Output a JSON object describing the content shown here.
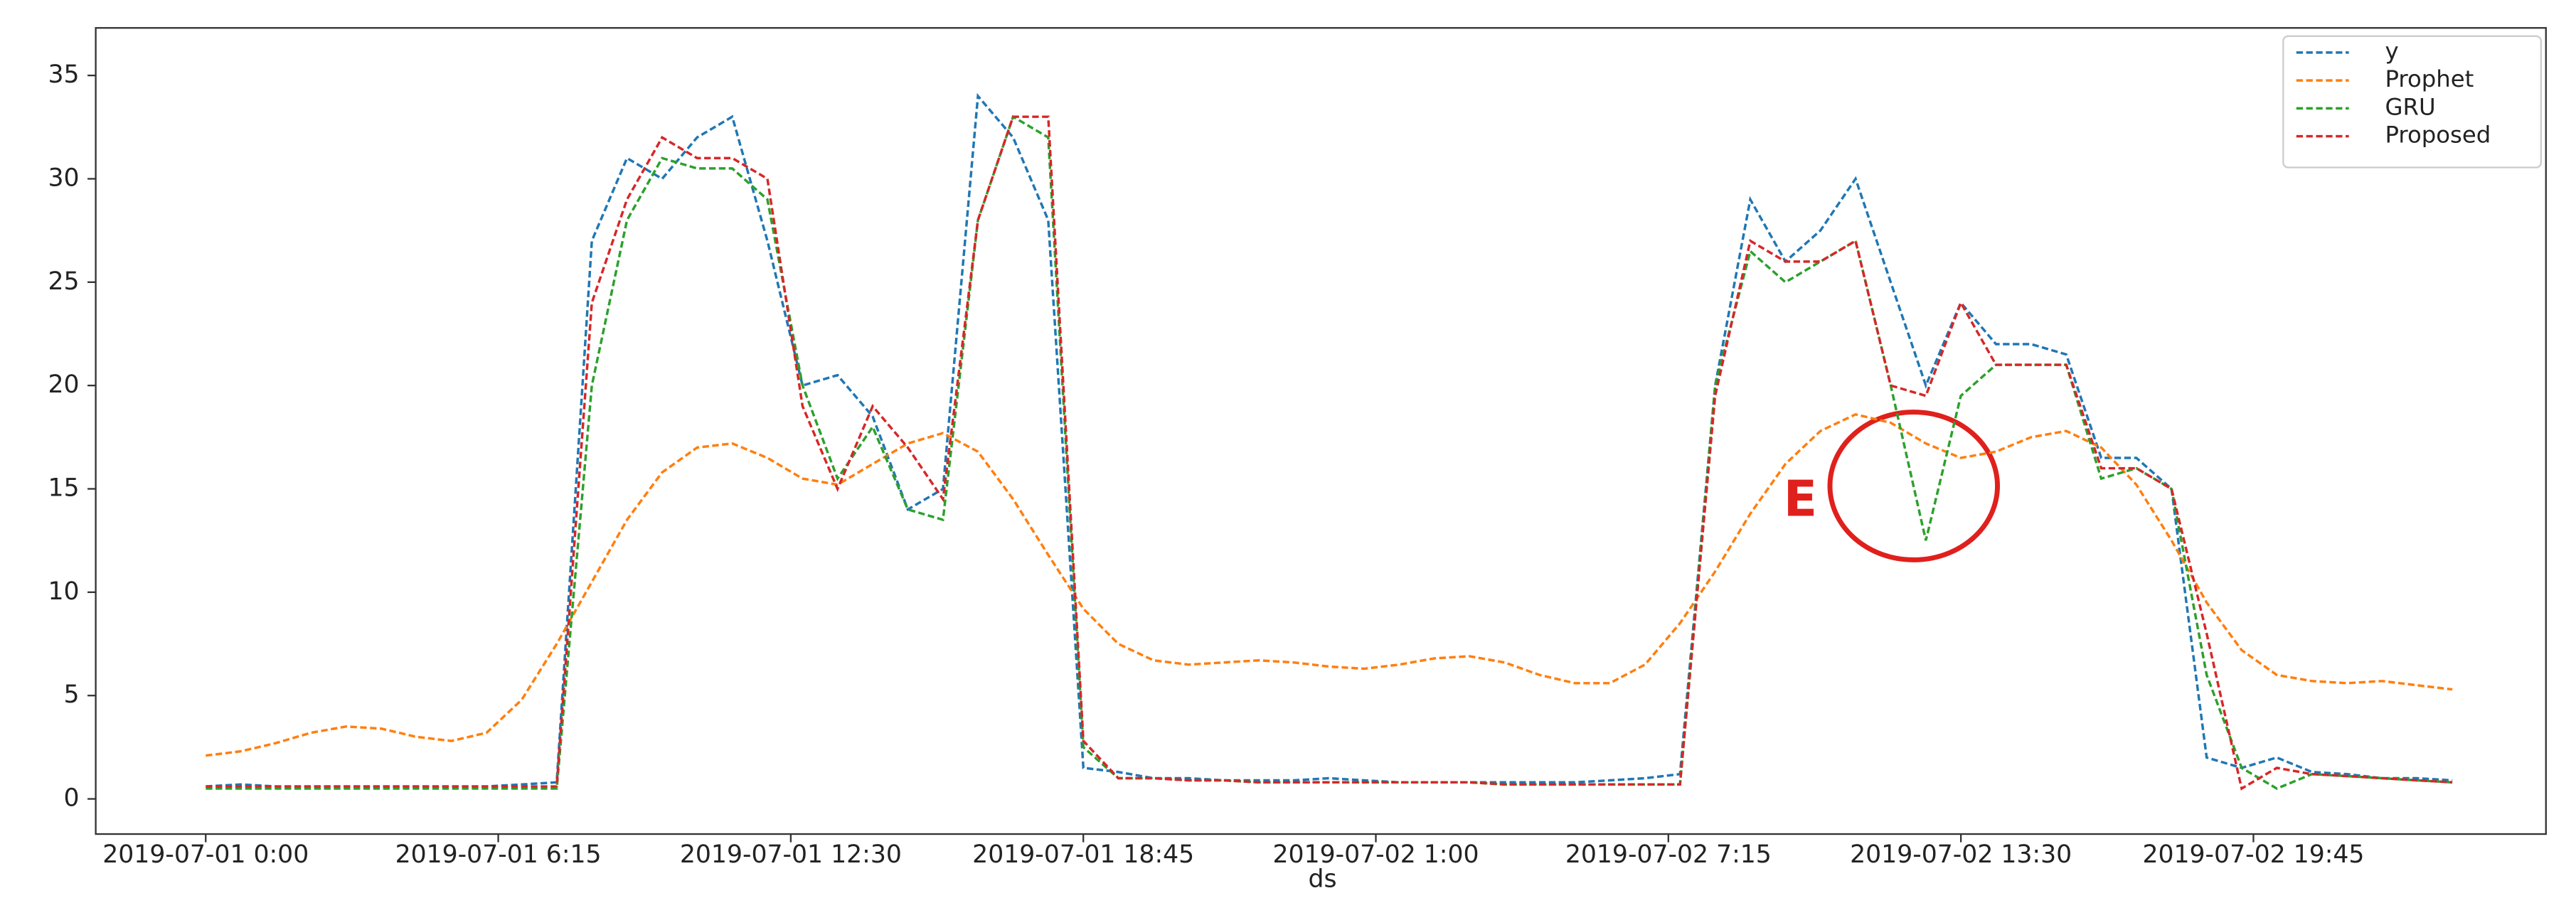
{
  "chart_data": {
    "type": "line",
    "x": [
      0,
      0.75,
      1.5,
      2.25,
      3,
      3.75,
      4.5,
      5.25,
      6,
      6.75,
      7.5,
      8.25,
      9,
      9.75,
      10.5,
      11.25,
      12,
      12.75,
      13.5,
      14.25,
      15,
      15.75,
      16.5,
      17.25,
      18,
      18.75,
      19.5,
      20.25,
      21,
      21.75,
      22.5,
      23.25,
      24,
      24.75,
      25.5,
      26.25,
      27,
      27.75,
      28.5,
      29.25,
      30,
      30.75,
      31.5,
      32.25,
      33,
      33.75,
      34.5,
      35.25,
      36,
      36.75,
      37.5,
      38.25,
      39,
      39.75,
      40.5,
      41.25,
      42,
      42.75,
      43.5,
      44.25,
      45,
      45.75,
      46.5,
      47.25,
      48
    ],
    "xlabel": "ds",
    "series": [
      {
        "name": "y",
        "color": "#1f77b4",
        "values": [
          0.6,
          0.7,
          0.6,
          0.6,
          0.6,
          0.6,
          0.6,
          0.6,
          0.6,
          0.7,
          0.8,
          27,
          31,
          30,
          32,
          33,
          27,
          20,
          20.5,
          18.5,
          14,
          15,
          34,
          32,
          28,
          1.5,
          1.3,
          1.0,
          1.0,
          0.9,
          0.9,
          0.9,
          1.0,
          0.9,
          0.8,
          0.8,
          0.8,
          0.8,
          0.8,
          0.8,
          0.9,
          1.0,
          1.2,
          20,
          29,
          26,
          27.5,
          30,
          25,
          20,
          24,
          22,
          22,
          21.5,
          16.5,
          16.5,
          15,
          2,
          1.5,
          2,
          1.3,
          1.2,
          1.0,
          1.0,
          0.9
        ]
      },
      {
        "name": "Prophet",
        "color": "#ff7f0e",
        "values": [
          2.1,
          2.3,
          2.7,
          3.2,
          3.5,
          3.4,
          3.0,
          2.8,
          3.2,
          4.8,
          7.5,
          10.5,
          13.5,
          15.8,
          17.0,
          17.2,
          16.5,
          15.5,
          15.2,
          16.2,
          17.2,
          17.7,
          16.8,
          14.5,
          11.8,
          9.2,
          7.5,
          6.7,
          6.5,
          6.6,
          6.7,
          6.6,
          6.4,
          6.3,
          6.5,
          6.8,
          6.9,
          6.6,
          6.0,
          5.6,
          5.6,
          6.5,
          8.5,
          11.0,
          13.8,
          16.2,
          17.8,
          18.6,
          18.2,
          17.2,
          16.5,
          16.8,
          17.5,
          17.8,
          17.0,
          15.2,
          12.5,
          9.5,
          7.2,
          6.0,
          5.7,
          5.6,
          5.7,
          5.5,
          5.3
        ]
      },
      {
        "name": "GRU",
        "color": "#2ca02c",
        "values": [
          0.5,
          0.5,
          0.5,
          0.5,
          0.5,
          0.5,
          0.5,
          0.5,
          0.5,
          0.5,
          0.5,
          20,
          28,
          31,
          30.5,
          30.5,
          29,
          20,
          15.5,
          18,
          14,
          13.5,
          28,
          33,
          32,
          2.5,
          1.0,
          1.0,
          0.9,
          0.9,
          0.8,
          0.8,
          0.8,
          0.8,
          0.8,
          0.8,
          0.8,
          0.7,
          0.7,
          0.7,
          0.7,
          0.7,
          0.7,
          20,
          26.5,
          25,
          26,
          27,
          20,
          12.5,
          19.5,
          21,
          21,
          21,
          15.5,
          16,
          15,
          6,
          1.5,
          0.5,
          1.2,
          1.1,
          1.0,
          0.9,
          0.8
        ]
      },
      {
        "name": "Proposed",
        "color": "#d62728",
        "values": [
          0.6,
          0.6,
          0.6,
          0.6,
          0.6,
          0.6,
          0.6,
          0.6,
          0.6,
          0.6,
          0.6,
          24,
          29,
          32,
          31,
          31,
          30,
          19,
          15,
          19,
          17,
          14.5,
          28,
          33,
          33,
          2.8,
          1.0,
          1.0,
          0.9,
          0.9,
          0.8,
          0.8,
          0.8,
          0.8,
          0.8,
          0.8,
          0.8,
          0.7,
          0.7,
          0.7,
          0.7,
          0.7,
          0.7,
          19.5,
          27,
          26,
          26,
          27,
          20,
          19.5,
          24,
          21,
          21,
          21,
          16,
          16,
          15,
          8,
          0.5,
          1.5,
          1.2,
          1.1,
          1.0,
          0.9,
          0.8
        ]
      }
    ],
    "xlim": [
      -2.35,
      50
    ],
    "xticks": [
      {
        "value": 0,
        "label": "2019-07-01 0:00"
      },
      {
        "value": 6.25,
        "label": "2019-07-01 6:15"
      },
      {
        "value": 12.5,
        "label": "2019-07-01 12:30"
      },
      {
        "value": 18.75,
        "label": "2019-07-01 18:45"
      },
      {
        "value": 25,
        "label": "2019-07-02 1:00"
      },
      {
        "value": 31.25,
        "label": "2019-07-02 7:15"
      },
      {
        "value": 37.5,
        "label": "2019-07-02 13:30"
      },
      {
        "value": 43.75,
        "label": "2019-07-02 19:45"
      }
    ],
    "ylim": [
      -1.7,
      37.3
    ],
    "yticks": [
      0,
      5,
      10,
      15,
      20,
      25,
      30,
      35
    ],
    "legend": "upper right",
    "annotations": [
      {
        "text": "E",
        "color": "#e0201c"
      }
    ]
  }
}
